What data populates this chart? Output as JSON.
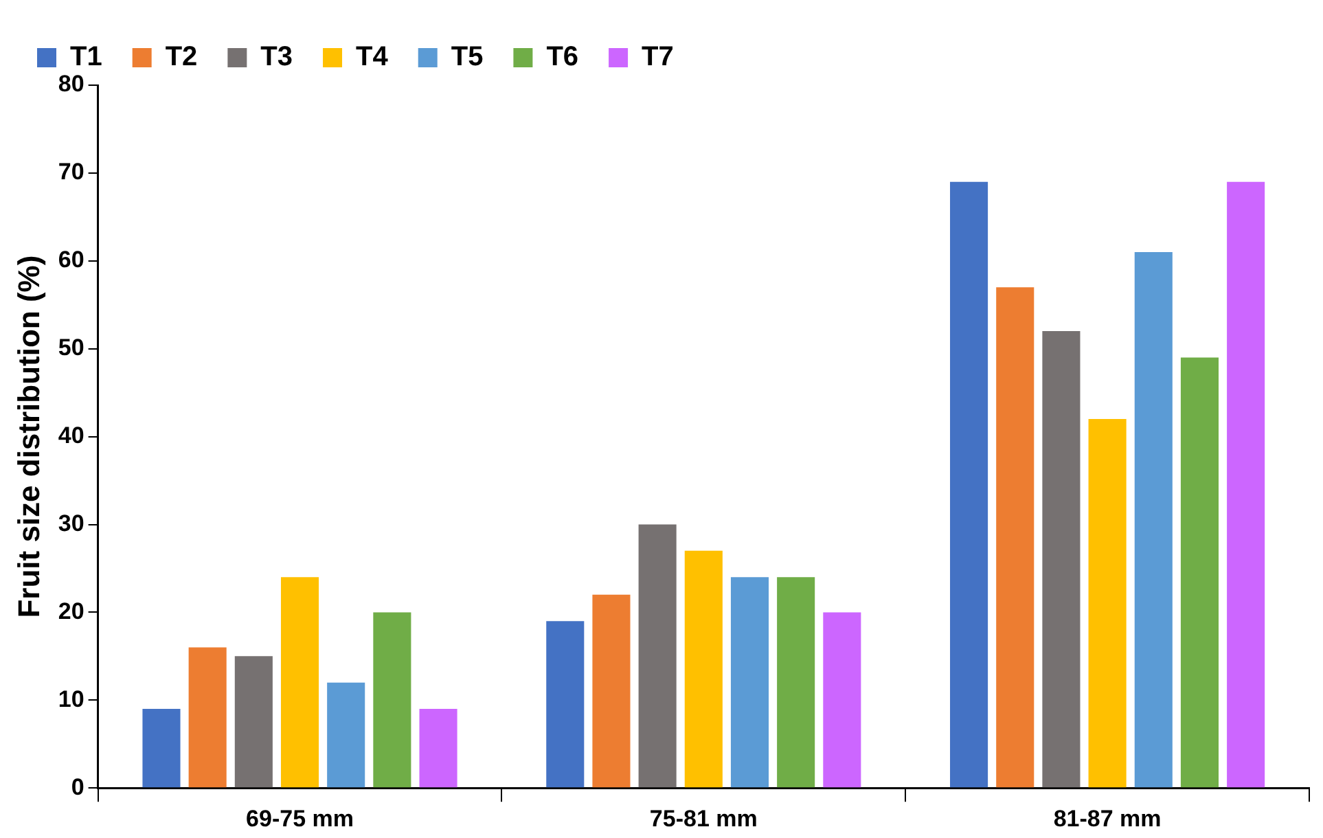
{
  "chart_data": {
    "type": "bar",
    "ylabel": "Fruit size distribution (%)",
    "categories": [
      "69-75 mm",
      "75-81 mm",
      "81-87 mm"
    ],
    "series": [
      {
        "name": "T1",
        "color": "#4472c4",
        "values": [
          9,
          19,
          69
        ]
      },
      {
        "name": "T2",
        "color": "#ed7d31",
        "values": [
          16,
          22,
          57
        ]
      },
      {
        "name": "T3",
        "color": "#767171",
        "values": [
          15,
          30,
          52
        ]
      },
      {
        "name": "T4",
        "color": "#ffc000",
        "values": [
          24,
          27,
          42
        ]
      },
      {
        "name": "T5",
        "color": "#5b9bd5",
        "values": [
          12,
          24,
          61
        ]
      },
      {
        "name": "T6",
        "color": "#70ad47",
        "values": [
          20,
          24,
          49
        ]
      },
      {
        "name": "T7",
        "color": "#cc66ff",
        "values": [
          9,
          20,
          69
        ]
      }
    ],
    "ylim": [
      0,
      80
    ],
    "yticks": [
      0,
      10,
      20,
      30,
      40,
      50,
      60,
      70,
      80
    ],
    "grid": false,
    "legend": "top left"
  }
}
